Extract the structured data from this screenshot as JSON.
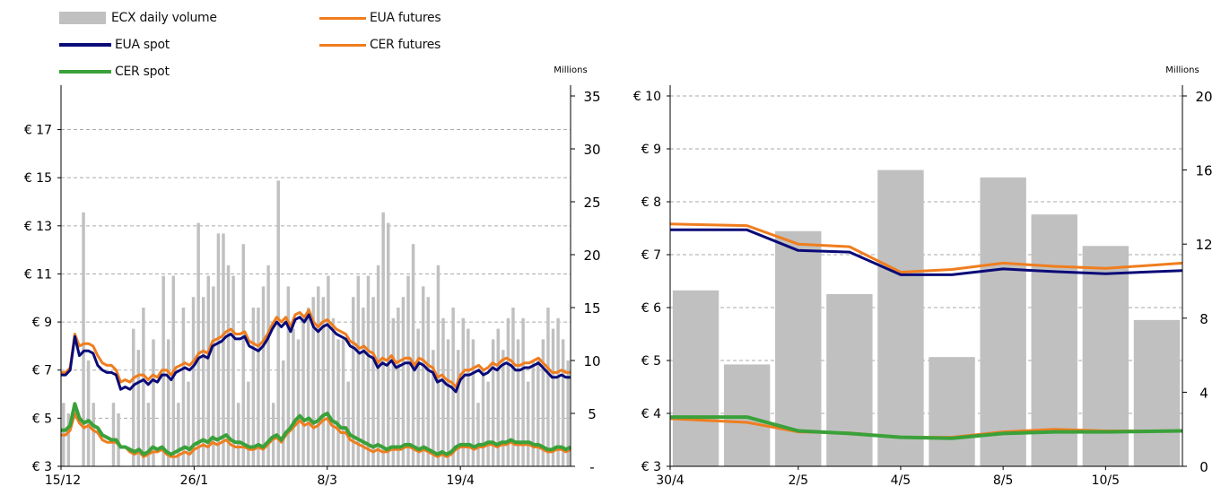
{
  "legend": {
    "volume": "ECX daily volume",
    "eua_spot": "EUA spot",
    "cer_spot": "CER spot",
    "eua_futures": "EUA futures",
    "cer_futures": "CER futures"
  },
  "colors": {
    "volume": "#c0c0c0",
    "eua_spot": "#0a0a78",
    "cer_spot": "#3aa13a",
    "eua_futures": "#f07d1e",
    "cer_futures": "#f07d1e",
    "gridline": "#aaaaaa",
    "axis": "#000000"
  },
  "chart_data": [
    {
      "type": "line",
      "panel": "left",
      "x_tick_labels": [
        "15/12",
        "26/1",
        "8/3",
        "19/4"
      ],
      "x_tick_index": [
        0,
        29,
        58,
        87
      ],
      "y_left": {
        "ticks": [
          "€ 3",
          "€ 5",
          "€ 7",
          "€ 9",
          "€ 11",
          "€ 13",
          "€ 15",
          "€ 17"
        ],
        "tick_values": [
          3,
          5,
          7,
          9,
          11,
          13,
          15,
          17
        ],
        "range": [
          3,
          18.4
        ]
      },
      "y_right": {
        "unit": "Millions",
        "ticks": [
          "-",
          "5",
          "10",
          "15",
          "20",
          "25",
          "30",
          "35"
        ],
        "tick_values": [
          0,
          5,
          10,
          15,
          20,
          25,
          30,
          35
        ],
        "range": [
          0,
          35
        ]
      },
      "grid": "horizontal dashed",
      "legend_position": "top-left",
      "series": [
        {
          "name": "ECX daily volume",
          "axis": "right",
          "kind": "bar",
          "values": [
            6,
            5,
            0,
            0,
            24,
            10,
            6,
            0,
            0,
            0,
            6,
            5,
            0,
            0,
            13,
            11,
            15,
            6,
            12,
            0,
            18,
            12,
            18,
            6,
            15,
            8,
            16,
            23,
            16,
            18,
            17,
            22,
            22,
            19,
            18,
            6,
            21,
            8,
            15,
            15,
            17,
            19,
            6,
            27,
            10,
            17,
            13,
            12,
            14,
            15,
            16,
            17,
            16,
            18,
            14,
            12,
            12,
            8,
            16,
            18,
            15,
            18,
            16,
            19,
            24,
            23,
            14,
            15,
            16,
            18,
            21,
            13,
            17,
            16,
            11,
            19,
            14,
            12,
            15,
            11,
            14,
            13,
            12,
            6,
            9,
            8,
            12,
            13,
            11,
            14,
            15,
            12,
            14,
            8,
            10,
            10,
            12,
            15,
            13,
            14,
            12,
            10
          ]
        },
        {
          "name": "EUA spot",
          "axis": "left",
          "kind": "line",
          "values": [
            6.8,
            6.8,
            7.0,
            8.4,
            7.6,
            7.8,
            7.8,
            7.7,
            7.2,
            7.0,
            6.9,
            6.9,
            6.8,
            6.2,
            6.3,
            6.2,
            6.4,
            6.5,
            6.6,
            6.4,
            6.6,
            6.5,
            6.8,
            6.8,
            6.6,
            6.9,
            7.0,
            7.1,
            7.0,
            7.2,
            7.5,
            7.6,
            7.5,
            8.0,
            8.1,
            8.2,
            8.4,
            8.5,
            8.3,
            8.3,
            8.4,
            8.0,
            7.9,
            7.8,
            8.0,
            8.3,
            8.7,
            9.0,
            8.8,
            9.0,
            8.6,
            9.1,
            9.2,
            9.0,
            9.3,
            8.8,
            8.6,
            8.8,
            8.9,
            8.7,
            8.5,
            8.4,
            8.3,
            8.0,
            7.9,
            7.7,
            7.8,
            7.6,
            7.5,
            7.1,
            7.3,
            7.2,
            7.4,
            7.1,
            7.2,
            7.3,
            7.3,
            7.0,
            7.3,
            7.2,
            7.0,
            6.9,
            6.5,
            6.6,
            6.4,
            6.3,
            6.1,
            6.6,
            6.8,
            6.8,
            6.9,
            7.0,
            6.8,
            6.9,
            7.1,
            7.0,
            7.2,
            7.3,
            7.2,
            7.0,
            7.0,
            7.1,
            7.1,
            7.2,
            7.3,
            7.1,
            6.9,
            6.7,
            6.7,
            6.8,
            6.7,
            6.7
          ]
        },
        {
          "name": "EUA futures",
          "axis": "left",
          "kind": "line",
          "values": [
            6.9,
            6.9,
            7.1,
            8.5,
            8.0,
            8.1,
            8.1,
            8.0,
            7.6,
            7.3,
            7.2,
            7.2,
            7.0,
            6.5,
            6.6,
            6.5,
            6.7,
            6.8,
            6.8,
            6.6,
            6.8,
            6.7,
            7.0,
            7.0,
            6.8,
            7.1,
            7.2,
            7.3,
            7.2,
            7.4,
            7.7,
            7.8,
            7.7,
            8.2,
            8.3,
            8.4,
            8.6,
            8.7,
            8.5,
            8.5,
            8.6,
            8.2,
            8.1,
            8.0,
            8.2,
            8.5,
            8.9,
            9.2,
            9.0,
            9.2,
            8.8,
            9.3,
            9.4,
            9.2,
            9.5,
            9.0,
            8.8,
            9.0,
            9.1,
            8.9,
            8.7,
            8.6,
            8.5,
            8.2,
            8.1,
            7.9,
            8.0,
            7.8,
            7.7,
            7.3,
            7.5,
            7.4,
            7.6,
            7.3,
            7.4,
            7.5,
            7.5,
            7.2,
            7.5,
            7.4,
            7.2,
            7.1,
            6.7,
            6.8,
            6.6,
            6.5,
            6.3,
            6.8,
            7.0,
            7.0,
            7.1,
            7.2,
            7.0,
            7.1,
            7.3,
            7.2,
            7.4,
            7.5,
            7.4,
            7.2,
            7.2,
            7.3,
            7.3,
            7.4,
            7.5,
            7.3,
            7.1,
            6.9,
            6.9,
            7.0,
            6.9,
            6.9
          ]
        },
        {
          "name": "CER spot",
          "axis": "left",
          "kind": "line",
          "values": [
            4.5,
            4.5,
            4.7,
            5.6,
            5.0,
            4.8,
            4.9,
            4.7,
            4.6,
            4.3,
            4.2,
            4.1,
            4.1,
            3.8,
            3.8,
            3.7,
            3.6,
            3.7,
            3.5,
            3.6,
            3.8,
            3.7,
            3.8,
            3.6,
            3.5,
            3.6,
            3.7,
            3.8,
            3.7,
            3.9,
            4.0,
            4.1,
            4.0,
            4.2,
            4.1,
            4.2,
            4.3,
            4.1,
            4.0,
            4.0,
            3.9,
            3.8,
            3.8,
            3.9,
            3.8,
            4.0,
            4.2,
            4.3,
            4.1,
            4.4,
            4.6,
            4.9,
            5.1,
            4.9,
            5.0,
            4.8,
            4.9,
            5.1,
            5.2,
            4.9,
            4.8,
            4.6,
            4.6,
            4.3,
            4.2,
            4.1,
            4.0,
            3.9,
            3.8,
            3.9,
            3.8,
            3.7,
            3.8,
            3.8,
            3.8,
            3.9,
            3.9,
            3.8,
            3.7,
            3.8,
            3.7,
            3.6,
            3.5,
            3.6,
            3.5,
            3.6,
            3.8,
            3.9,
            3.9,
            3.9,
            3.8,
            3.9,
            3.9,
            4.0,
            4.0,
            3.9,
            4.0,
            4.0,
            4.1,
            4.0,
            4.0,
            4.0,
            4.0,
            3.9,
            3.9,
            3.8,
            3.7,
            3.7,
            3.8,
            3.8,
            3.7,
            3.8
          ]
        },
        {
          "name": "CER futures",
          "axis": "left",
          "kind": "line",
          "values": [
            4.3,
            4.3,
            4.5,
            5.2,
            4.8,
            4.6,
            4.7,
            4.5,
            4.4,
            4.1,
            4.0,
            4.0,
            4.0,
            3.8,
            3.8,
            3.6,
            3.5,
            3.6,
            3.4,
            3.5,
            3.6,
            3.6,
            3.7,
            3.5,
            3.4,
            3.4,
            3.5,
            3.6,
            3.5,
            3.7,
            3.8,
            3.9,
            3.8,
            4.0,
            3.9,
            4.0,
            4.1,
            3.9,
            3.8,
            3.8,
            3.8,
            3.7,
            3.7,
            3.8,
            3.7,
            3.9,
            4.1,
            4.2,
            4.0,
            4.3,
            4.5,
            4.7,
            4.9,
            4.7,
            4.8,
            4.6,
            4.7,
            4.9,
            5.0,
            4.7,
            4.6,
            4.4,
            4.4,
            4.1,
            4.0,
            3.9,
            3.8,
            3.7,
            3.6,
            3.7,
            3.6,
            3.6,
            3.7,
            3.7,
            3.7,
            3.8,
            3.8,
            3.7,
            3.6,
            3.7,
            3.6,
            3.5,
            3.4,
            3.5,
            3.4,
            3.5,
            3.7,
            3.8,
            3.8,
            3.8,
            3.7,
            3.8,
            3.8,
            3.9,
            3.9,
            3.8,
            3.9,
            3.9,
            4.0,
            3.9,
            3.9,
            3.9,
            3.9,
            3.8,
            3.8,
            3.7,
            3.6,
            3.6,
            3.7,
            3.7,
            3.6,
            3.7
          ]
        }
      ]
    },
    {
      "type": "line",
      "panel": "right",
      "x_tick_labels": [
        "30/4",
        "2/5",
        "4/5",
        "8/5",
        "10/5"
      ],
      "x_tick_index": [
        0,
        2.5,
        4.5,
        6.5,
        8.5
      ],
      "y_left": {
        "ticks": [
          "€ 3",
          "€ 4",
          "€ 5",
          "€ 6",
          "€ 7",
          "€ 8",
          "€ 9",
          "€ 10"
        ],
        "tick_values": [
          3,
          4,
          5,
          6,
          7,
          8,
          9,
          10
        ],
        "range": [
          3,
          10
        ]
      },
      "y_right": {
        "unit": "Millions",
        "ticks": [
          "0",
          "4",
          "8",
          "12",
          "16",
          "20"
        ],
        "tick_values": [
          0,
          4,
          8,
          12,
          16,
          20
        ],
        "range": [
          0,
          20
        ]
      },
      "grid": "horizontal dashed",
      "series": [
        {
          "name": "ECX daily volume",
          "axis": "right",
          "kind": "bar",
          "values": [
            9.5,
            5.5,
            12.7,
            9.3,
            16.0,
            5.9,
            15.6,
            13.6,
            11.9,
            7.9
          ]
        },
        {
          "name": "EUA spot",
          "axis": "left",
          "kind": "line",
          "points": [
            [
              0,
              7.47
            ],
            [
              1,
              7.47
            ],
            [
              2,
              7.08
            ],
            [
              3,
              7.05
            ],
            [
              4,
              6.62
            ],
            [
              5,
              6.62
            ],
            [
              6,
              6.73
            ],
            [
              7,
              6.68
            ],
            [
              8,
              6.64
            ],
            [
              9,
              6.7
            ]
          ]
        },
        {
          "name": "EUA futures",
          "axis": "left",
          "kind": "line",
          "points": [
            [
              0,
              7.58
            ],
            [
              1,
              7.55
            ],
            [
              2,
              7.2
            ],
            [
              3,
              7.15
            ],
            [
              4,
              6.67
            ],
            [
              5,
              6.72
            ],
            [
              6,
              6.84
            ],
            [
              7,
              6.78
            ],
            [
              8,
              6.74
            ],
            [
              9,
              6.84
            ]
          ]
        },
        {
          "name": "CER futures",
          "axis": "left",
          "kind": "line",
          "points": [
            [
              0,
              3.9
            ],
            [
              1,
              3.83
            ],
            [
              2,
              3.65
            ],
            [
              3,
              3.63
            ],
            [
              4,
              3.55
            ],
            [
              5,
              3.55
            ],
            [
              6,
              3.65
            ],
            [
              7,
              3.7
            ],
            [
              8,
              3.67
            ],
            [
              9,
              3.67
            ]
          ]
        },
        {
          "name": "CER spot",
          "axis": "left",
          "kind": "line",
          "points": [
            [
              0,
              3.93
            ],
            [
              1,
              3.93
            ],
            [
              2,
              3.67
            ],
            [
              3,
              3.62
            ],
            [
              4,
              3.55
            ],
            [
              5,
              3.53
            ],
            [
              6,
              3.62
            ],
            [
              7,
              3.65
            ],
            [
              8,
              3.65
            ],
            [
              9,
              3.67
            ]
          ]
        }
      ]
    }
  ]
}
